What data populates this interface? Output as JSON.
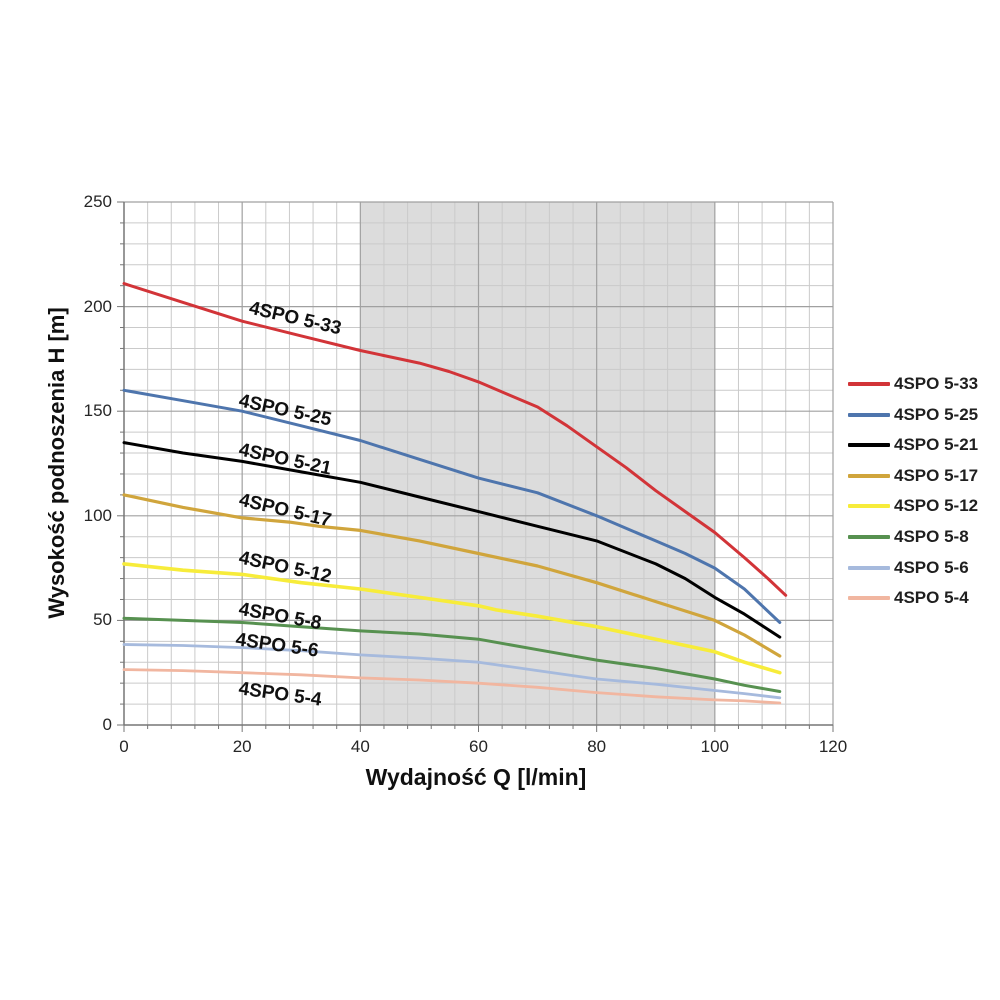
{
  "chart_data": {
    "type": "line",
    "title": "",
    "xlabel": "Wydajność Q [l/min]",
    "ylabel": "Wysokość podnoszenia H [m]",
    "xlim": [
      0,
      120
    ],
    "ylim": [
      0,
      250
    ],
    "x_major": 20,
    "x_minor": 4,
    "y_major": 50,
    "y_minor": 10,
    "x_ticks": [
      0,
      20,
      40,
      60,
      80,
      100,
      120
    ],
    "y_ticks": [
      0,
      50,
      100,
      150,
      200,
      250
    ],
    "grid": "on",
    "legend_position": "right",
    "band": {
      "x0": 40,
      "x1": 100,
      "color": "#dcdcdc"
    },
    "series": [
      {
        "name": "4SPO 5-4",
        "color": "#f1b6a0",
        "width": 2.8,
        "points": [
          [
            0,
            26.5
          ],
          [
            10,
            26
          ],
          [
            20,
            25
          ],
          [
            30,
            24
          ],
          [
            40,
            22.5
          ],
          [
            50,
            21.5
          ],
          [
            60,
            20
          ],
          [
            70,
            18
          ],
          [
            80,
            15.5
          ],
          [
            90,
            13.5
          ],
          [
            100,
            12
          ],
          [
            105,
            11.5
          ],
          [
            111,
            10.5
          ]
        ]
      },
      {
        "name": "4SPO 5-6",
        "color": "#a6badd",
        "width": 2.8,
        "points": [
          [
            0,
            38.5
          ],
          [
            10,
            38
          ],
          [
            20,
            37
          ],
          [
            30,
            35.5
          ],
          [
            40,
            33.5
          ],
          [
            50,
            32
          ],
          [
            60,
            30
          ],
          [
            70,
            26
          ],
          [
            80,
            22
          ],
          [
            90,
            19.5
          ],
          [
            100,
            16.5
          ],
          [
            105,
            15
          ],
          [
            111,
            13
          ]
        ]
      },
      {
        "name": "4SPO 5-8",
        "color": "#579150",
        "width": 3,
        "points": [
          [
            0,
            51
          ],
          [
            10,
            50
          ],
          [
            20,
            49
          ],
          [
            30,
            47
          ],
          [
            40,
            45
          ],
          [
            50,
            43.5
          ],
          [
            60,
            41
          ],
          [
            70,
            36
          ],
          [
            80,
            31
          ],
          [
            90,
            27
          ],
          [
            100,
            22
          ],
          [
            105,
            19
          ],
          [
            111,
            16
          ]
        ]
      },
      {
        "name": "4SPO 5-12",
        "color": "#f7ec3a",
        "width": 3.6,
        "points": [
          [
            0,
            77
          ],
          [
            10,
            74
          ],
          [
            20,
            72
          ],
          [
            30,
            68
          ],
          [
            40,
            65
          ],
          [
            50,
            61
          ],
          [
            60,
            57
          ],
          [
            63,
            55
          ],
          [
            70,
            52
          ],
          [
            80,
            47
          ],
          [
            90,
            41
          ],
          [
            100,
            35
          ],
          [
            105,
            30
          ],
          [
            111,
            25
          ]
        ]
      },
      {
        "name": "4SPO 5-17",
        "color": "#d0a53c",
        "width": 3.2,
        "points": [
          [
            0,
            110
          ],
          [
            10,
            104
          ],
          [
            20,
            99
          ],
          [
            28,
            97
          ],
          [
            33,
            95
          ],
          [
            40,
            93
          ],
          [
            50,
            88
          ],
          [
            60,
            82
          ],
          [
            70,
            76
          ],
          [
            80,
            68
          ],
          [
            90,
            59
          ],
          [
            100,
            50
          ],
          [
            105,
            43
          ],
          [
            111,
            33
          ]
        ]
      },
      {
        "name": "4SPO 5-21",
        "color": "#000000",
        "width": 3,
        "points": [
          [
            0,
            135
          ],
          [
            10,
            130
          ],
          [
            20,
            126
          ],
          [
            30,
            121
          ],
          [
            40,
            116
          ],
          [
            50,
            109
          ],
          [
            60,
            102
          ],
          [
            70,
            95
          ],
          [
            80,
            88
          ],
          [
            90,
            77
          ],
          [
            95,
            70
          ],
          [
            100,
            61
          ],
          [
            105,
            53
          ],
          [
            111,
            42
          ]
        ]
      },
      {
        "name": "4SPO 5-25",
        "color": "#4e75ad",
        "width": 3,
        "points": [
          [
            0,
            160
          ],
          [
            10,
            155
          ],
          [
            20,
            150
          ],
          [
            30,
            143
          ],
          [
            40,
            136
          ],
          [
            50,
            127
          ],
          [
            60,
            118
          ],
          [
            70,
            111
          ],
          [
            80,
            100
          ],
          [
            90,
            88
          ],
          [
            95,
            82
          ],
          [
            100,
            75
          ],
          [
            105,
            65
          ],
          [
            111,
            49
          ]
        ]
      },
      {
        "name": "4SPO 5-33",
        "color": "#d23438",
        "width": 3,
        "points": [
          [
            0,
            211
          ],
          [
            10,
            202
          ],
          [
            20,
            193
          ],
          [
            30,
            186
          ],
          [
            40,
            179
          ],
          [
            50,
            173
          ],
          [
            55,
            169
          ],
          [
            60,
            164
          ],
          [
            65,
            158
          ],
          [
            70,
            152
          ],
          [
            75,
            143
          ],
          [
            80,
            133
          ],
          [
            85,
            123
          ],
          [
            90,
            112
          ],
          [
            95,
            102
          ],
          [
            100,
            92
          ],
          [
            105,
            80
          ],
          [
            109,
            70
          ],
          [
            112,
            62
          ]
        ]
      }
    ],
    "legend": [
      {
        "label": "4SPO 5-33",
        "color": "#d23438"
      },
      {
        "label": "4SPO 5-25",
        "color": "#4e75ad"
      },
      {
        "label": "4SPO 5-21",
        "color": "#000000"
      },
      {
        "label": "4SPO 5-17",
        "color": "#d0a53c"
      },
      {
        "label": "4SPO 5-12",
        "color": "#f7ec3a"
      },
      {
        "label": "4SPO 5-8",
        "color": "#579150"
      },
      {
        "label": "4SPO 5-6",
        "color": "#a6badd"
      },
      {
        "label": "4SPO 5-4",
        "color": "#f1b6a0"
      }
    ],
    "annotations": [
      {
        "text": "4SPO 5-33",
        "x": 28.9,
        "y": 194,
        "rot": 13
      },
      {
        "text": "4SPO 5-25",
        "x": 27.2,
        "y": 150,
        "rot": 12
      },
      {
        "text": "4SPO 5-21",
        "x": 27.2,
        "y": 126.5,
        "rot": 12
      },
      {
        "text": "4SPO 5-17",
        "x": 27.2,
        "y": 102.5,
        "rot": 13
      },
      {
        "text": "4SPO 5-12",
        "x": 27.2,
        "y": 75,
        "rot": 12
      },
      {
        "text": "4SPO 5-8",
        "x": 26.4,
        "y": 51.5,
        "rot": 10
      },
      {
        "text": "4SPO 5-6",
        "x": 25.9,
        "y": 38,
        "rot": 8
      },
      {
        "text": "4SPO 5-4",
        "x": 26.4,
        "y": 14.5,
        "rot": 8
      }
    ]
  }
}
